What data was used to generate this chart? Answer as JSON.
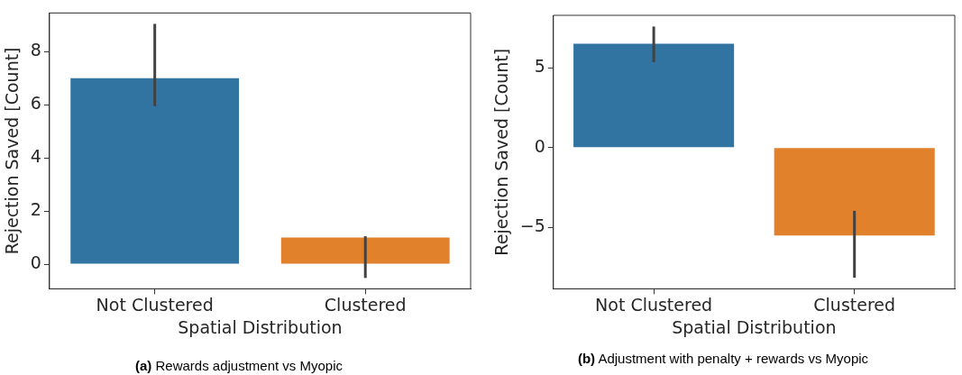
{
  "chart_data": [
    {
      "type": "bar",
      "categories": [
        "Not Clustered",
        "Clustered"
      ],
      "xlabel": "Spatial Distribution",
      "ylabel": "Rejection Saved [Count]",
      "colors": [
        "#3274a1",
        "#e1812c"
      ],
      "values": [
        7.0,
        1.0
      ],
      "errors": [
        [
          5.95,
          9.05
        ],
        [
          -0.52,
          1.05
        ]
      ],
      "ylim": [
        -0.93,
        9.46
      ],
      "yticks": [
        0,
        2,
        4,
        6,
        8
      ],
      "grid": false,
      "legend": false,
      "annotations": [
        "(a) Rewards adjustment vs Myopic"
      ]
    },
    {
      "type": "bar",
      "categories": [
        "Not Clustered",
        "Clustered"
      ],
      "xlabel": "Spatial Distribution",
      "ylabel": "Rejection Saved [Count]",
      "colors": [
        "#3274a1",
        "#e1812c"
      ],
      "values": [
        6.5,
        -5.5
      ],
      "errors": [
        [
          5.35,
          7.58
        ],
        [
          -8.13,
          -3.95
        ]
      ],
      "ylim": [
        -8.83,
        8.28
      ],
      "yticks": [
        {
          "value": -5,
          "label": "−5"
        },
        0,
        5
      ],
      "grid": false,
      "legend": false,
      "annotations": [
        "(b) Adjustment with penalty + rewards vs Myopic"
      ]
    }
  ]
}
